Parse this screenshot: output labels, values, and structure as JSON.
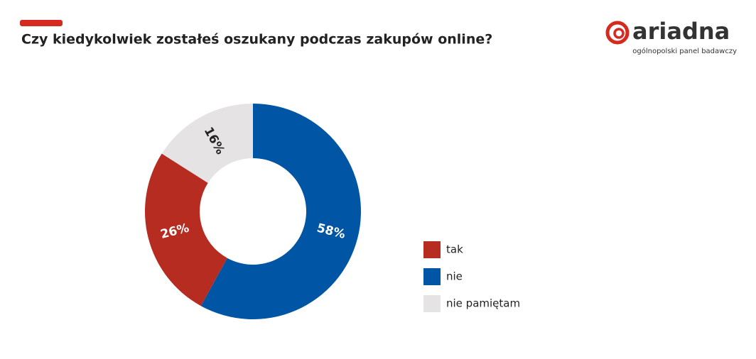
{
  "chart_data": {
    "type": "donut",
    "title": "Czy kiedykolwiek zostałeś oszukany podczas zakupów online?",
    "categories": [
      "tak",
      "nie",
      "nie pamiętam"
    ],
    "values": [
      26,
      58,
      16
    ],
    "value_labels": [
      "26%",
      "58%",
      "16%"
    ],
    "colors": [
      "#b72c20",
      "#0055a4",
      "#e5e3e4"
    ],
    "label_colors": [
      "#ffffff",
      "#ffffff",
      "#222222"
    ],
    "legend": "right"
  },
  "logo": {
    "name": "ariadna",
    "tagline": "ogólnopolski panel badawczy"
  }
}
